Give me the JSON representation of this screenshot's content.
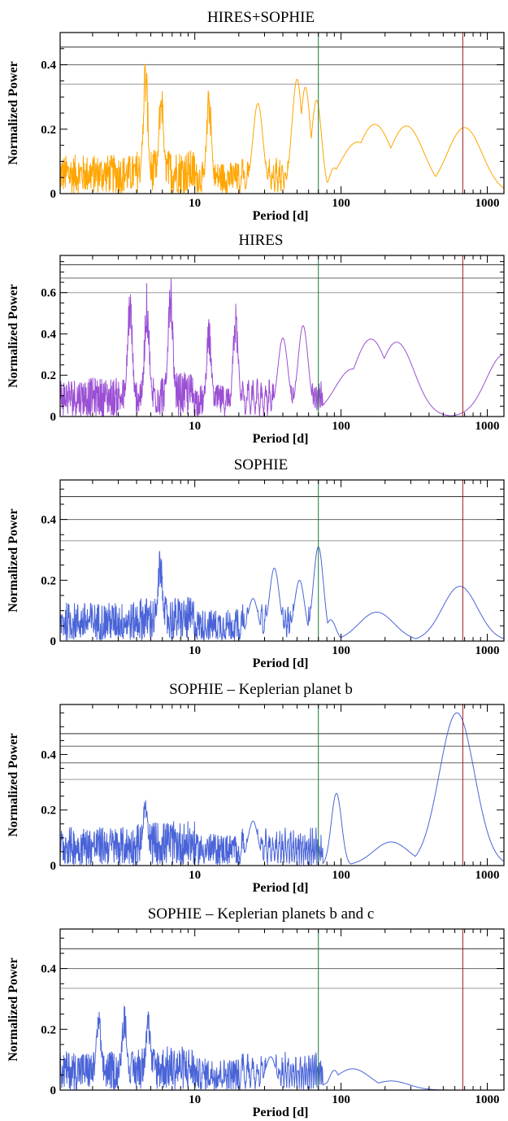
{
  "chart_data": [
    {
      "type": "line",
      "title": "HIRES+SOPHIE",
      "xlabel": "Period [d]",
      "ylabel": "Normalized Power",
      "x_scale": "log",
      "xlim": [
        1.2,
        1300
      ],
      "ylim": [
        0,
        0.5
      ],
      "x_ticks": [
        10,
        100,
        1000
      ],
      "y_ticks": [
        0,
        0.2,
        0.4
      ],
      "color": "#FFA500",
      "fap_levels": [
        0.455,
        0.4,
        0.34
      ],
      "vertical_markers": [
        {
          "x": 70,
          "color": "#1a7a3a"
        },
        {
          "x": 680,
          "color": "#a01818"
        }
      ],
      "peaks": [
        {
          "period": 4.6,
          "power": 0.44
        },
        {
          "period": 5.9,
          "power": 0.36
        },
        {
          "period": 12.5,
          "power": 0.34
        },
        {
          "period": 27,
          "power": 0.28
        },
        {
          "period": 50,
          "power": 0.355
        },
        {
          "period": 57,
          "power": 0.33
        },
        {
          "period": 68,
          "power": 0.29
        },
        {
          "period": 90,
          "power": 0.08
        },
        {
          "period": 130,
          "power": 0.16
        },
        {
          "period": 170,
          "power": 0.215
        },
        {
          "period": 280,
          "power": 0.21
        },
        {
          "period": 700,
          "power": 0.205
        }
      ]
    },
    {
      "type": "line",
      "title": "HIRES",
      "xlabel": "Period [d]",
      "ylabel": "Normalized Power",
      "x_scale": "log",
      "xlim": [
        1.2,
        1300
      ],
      "ylim": [
        0,
        0.78
      ],
      "x_ticks": [
        10,
        100,
        1000
      ],
      "y_ticks": [
        0,
        0.2,
        0.4,
        0.6
      ],
      "color": "#9b4fd4",
      "fap_levels": [
        0.735,
        0.67,
        0.6
      ],
      "vertical_markers": [
        {
          "x": 70,
          "color": "#1a7a3a"
        },
        {
          "x": 680,
          "color": "#a01818"
        }
      ],
      "peaks": [
        {
          "period": 3.6,
          "power": 0.65
        },
        {
          "period": 4.7,
          "power": 0.65
        },
        {
          "period": 6.8,
          "power": 0.76
        },
        {
          "period": 12.5,
          "power": 0.48
        },
        {
          "period": 19,
          "power": 0.56
        },
        {
          "period": 40,
          "power": 0.38
        },
        {
          "period": 55,
          "power": 0.44
        },
        {
          "period": 120,
          "power": 0.23
        },
        {
          "period": 160,
          "power": 0.375
        },
        {
          "period": 240,
          "power": 0.36
        },
        {
          "period": 1300,
          "power": 0.3
        }
      ]
    },
    {
      "type": "line",
      "title": "SOPHIE",
      "xlabel": "Period [d]",
      "ylabel": "Normalized Power",
      "x_scale": "log",
      "xlim": [
        1.2,
        1300
      ],
      "ylim": [
        0,
        0.53
      ],
      "x_ticks": [
        10,
        100,
        1000
      ],
      "y_ticks": [
        0,
        0.2,
        0.4
      ],
      "color": "#4a64d8",
      "fap_levels": [
        0.475,
        0.4,
        0.33
      ],
      "vertical_markers": [
        {
          "x": 70,
          "color": "#1a7a3a"
        },
        {
          "x": 680,
          "color": "#a01818"
        }
      ],
      "peaks": [
        {
          "period": 5.8,
          "power": 0.305
        },
        {
          "period": 25,
          "power": 0.14
        },
        {
          "period": 35,
          "power": 0.24
        },
        {
          "period": 52,
          "power": 0.2
        },
        {
          "period": 70,
          "power": 0.31
        },
        {
          "period": 85,
          "power": 0.07
        },
        {
          "period": 175,
          "power": 0.095
        },
        {
          "period": 650,
          "power": 0.18
        }
      ]
    },
    {
      "type": "line",
      "title": "SOPHIE – Keplerian planet b",
      "xlabel": "Period [d]",
      "ylabel": "Normalized Power",
      "x_scale": "log",
      "xlim": [
        1.2,
        1300
      ],
      "ylim": [
        0,
        0.58
      ],
      "x_ticks": [
        10,
        100,
        1000
      ],
      "y_ticks": [
        0,
        0.2,
        0.4
      ],
      "color": "#4a64d8",
      "fap_levels": [
        0.475,
        0.43,
        0.37,
        0.31
      ],
      "vertical_markers": [
        {
          "x": 70,
          "color": "#1a7a3a"
        },
        {
          "x": 680,
          "color": "#a01818"
        }
      ],
      "peaks": [
        {
          "period": 4.6,
          "power": 0.27
        },
        {
          "period": 25,
          "power": 0.16
        },
        {
          "period": 93,
          "power": 0.26
        },
        {
          "period": 220,
          "power": 0.085
        },
        {
          "period": 620,
          "power": 0.55
        }
      ]
    },
    {
      "type": "line",
      "title": "SOPHIE – Keplerian planets b and c",
      "xlabel": "Period [d]",
      "ylabel": "Normalized Power",
      "x_scale": "log",
      "xlim": [
        1.2,
        1300
      ],
      "ylim": [
        0,
        0.53
      ],
      "x_ticks": [
        10,
        100,
        1000
      ],
      "y_ticks": [
        0,
        0.2,
        0.4
      ],
      "color": "#4a64d8",
      "fap_levels": [
        0.465,
        0.4,
        0.335
      ],
      "vertical_markers": [
        {
          "x": 70,
          "color": "#1a7a3a"
        },
        {
          "x": 680,
          "color": "#a01818"
        }
      ],
      "peaks": [
        {
          "period": 2.2,
          "power": 0.29
        },
        {
          "period": 3.3,
          "power": 0.285
        },
        {
          "period": 4.8,
          "power": 0.26
        },
        {
          "period": 33,
          "power": 0.11
        },
        {
          "period": 90,
          "power": 0.065
        },
        {
          "period": 120,
          "power": 0.07
        },
        {
          "period": 220,
          "power": 0.03
        }
      ]
    }
  ]
}
